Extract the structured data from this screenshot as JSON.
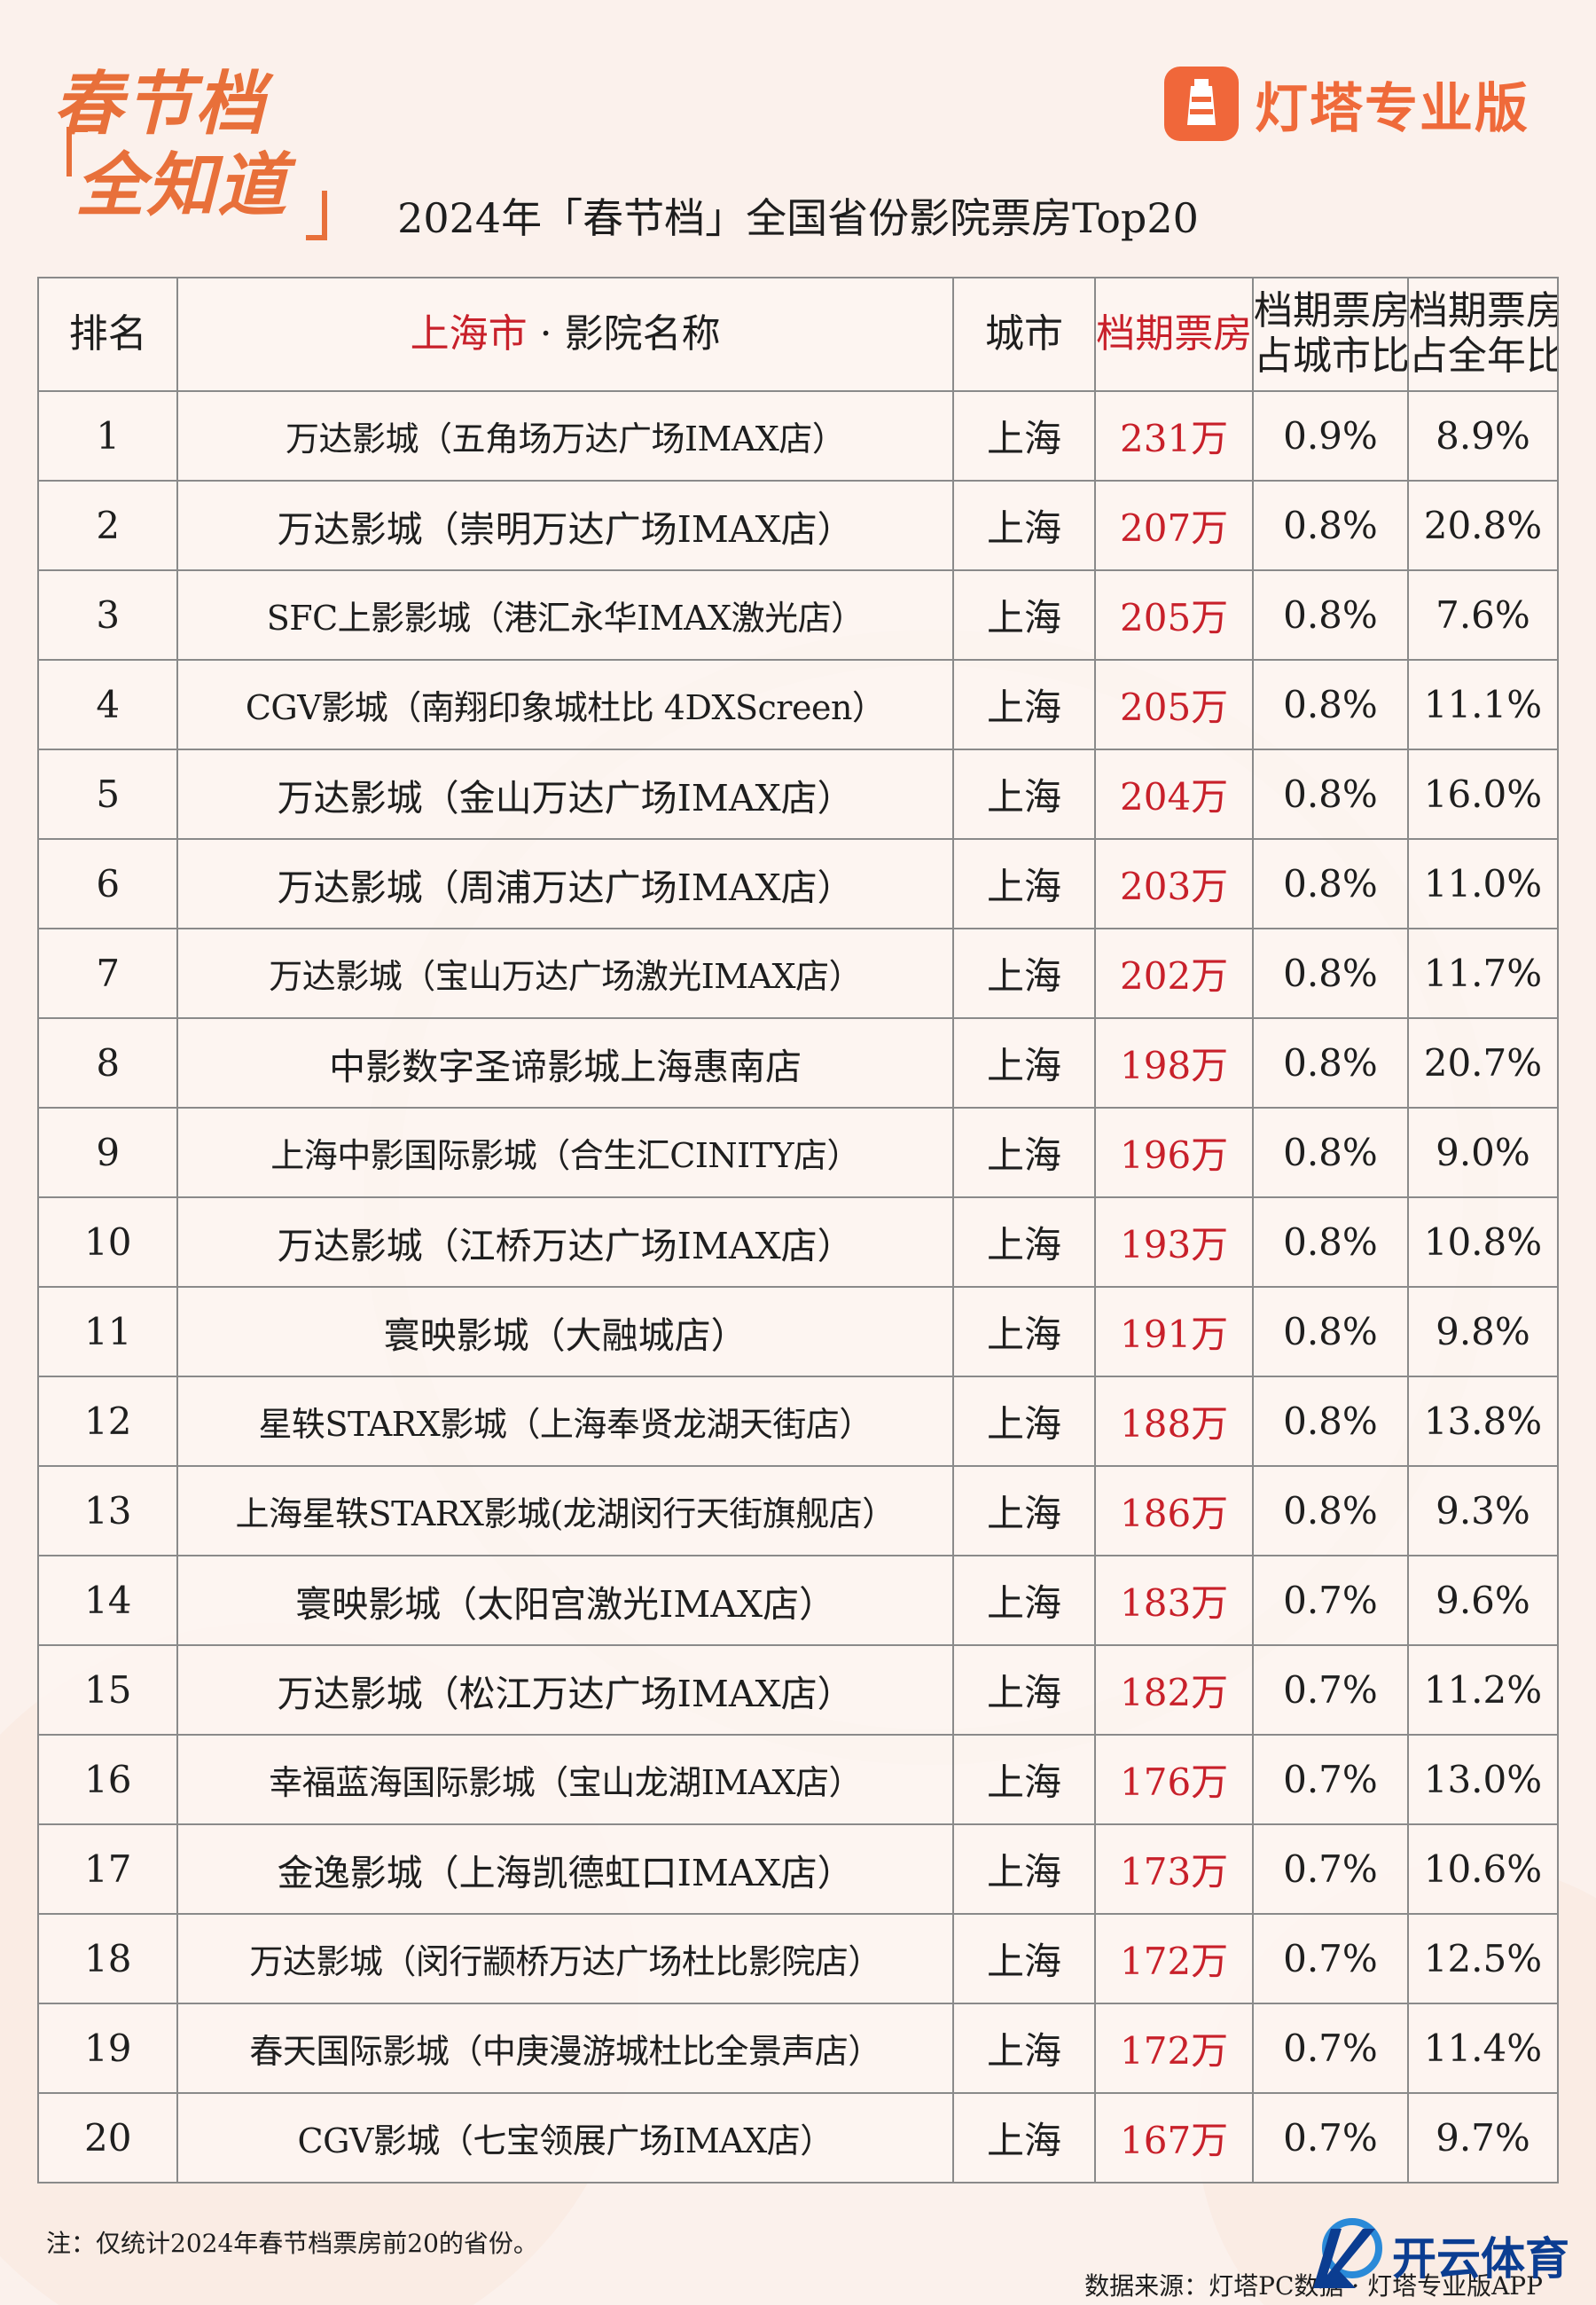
{
  "header": {
    "logo_line1": "春节档",
    "logo_line2": "全知道",
    "brand_icon": "lighthouse-icon",
    "brand_name": "灯塔专业版",
    "title": "2024年「春节档」全国省份影院票房Top20"
  },
  "colors": {
    "accent_orange": "#ef6a3a",
    "accent_red": "#c8202a",
    "background": "#fbf1ec"
  },
  "table": {
    "headers": {
      "rank": "排名",
      "cinema_city": "上海市",
      "cinema_sep": "· 影院名称",
      "city": "城市",
      "box_office": "档期票房",
      "city_ratio_l1": "档期票房",
      "city_ratio_l2": "占城市比",
      "year_ratio_l1": "档期票房",
      "year_ratio_l2": "占全年比"
    },
    "rows": [
      {
        "rank": "1",
        "cinema": "万达影城（五角场万达广场IMAX店）",
        "city": "上海",
        "box_office": "231万",
        "city_ratio": "0.9%",
        "year_ratio": "8.9%"
      },
      {
        "rank": "2",
        "cinema": "万达影城（崇明万达广场IMAX店）",
        "city": "上海",
        "box_office": "207万",
        "city_ratio": "0.8%",
        "year_ratio": "20.8%"
      },
      {
        "rank": "3",
        "cinema": "SFC上影影城（港汇永华IMAX激光店）",
        "city": "上海",
        "box_office": "205万",
        "city_ratio": "0.8%",
        "year_ratio": "7.6%"
      },
      {
        "rank": "4",
        "cinema": "CGV影城（南翔印象城杜比 4DXScreen）",
        "city": "上海",
        "box_office": "205万",
        "city_ratio": "0.8%",
        "year_ratio": "11.1%"
      },
      {
        "rank": "5",
        "cinema": "万达影城（金山万达广场IMAX店）",
        "city": "上海",
        "box_office": "204万",
        "city_ratio": "0.8%",
        "year_ratio": "16.0%"
      },
      {
        "rank": "6",
        "cinema": "万达影城（周浦万达广场IMAX店）",
        "city": "上海",
        "box_office": "203万",
        "city_ratio": "0.8%",
        "year_ratio": "11.0%"
      },
      {
        "rank": "7",
        "cinema": "万达影城（宝山万达广场激光IMAX店）",
        "city": "上海",
        "box_office": "202万",
        "city_ratio": "0.8%",
        "year_ratio": "11.7%"
      },
      {
        "rank": "8",
        "cinema": "中影数字圣谛影城上海惠南店",
        "city": "上海",
        "box_office": "198万",
        "city_ratio": "0.8%",
        "year_ratio": "20.7%"
      },
      {
        "rank": "9",
        "cinema": "上海中影国际影城（合生汇CINITY店）",
        "city": "上海",
        "box_office": "196万",
        "city_ratio": "0.8%",
        "year_ratio": "9.0%"
      },
      {
        "rank": "10",
        "cinema": "万达影城（江桥万达广场IMAX店）",
        "city": "上海",
        "box_office": "193万",
        "city_ratio": "0.8%",
        "year_ratio": "10.8%"
      },
      {
        "rank": "11",
        "cinema": "寰映影城（大融城店）",
        "city": "上海",
        "box_office": "191万",
        "city_ratio": "0.8%",
        "year_ratio": "9.8%"
      },
      {
        "rank": "12",
        "cinema": "星轶STARX影城（上海奉贤龙湖天街店）",
        "city": "上海",
        "box_office": "188万",
        "city_ratio": "0.8%",
        "year_ratio": "13.8%"
      },
      {
        "rank": "13",
        "cinema": "上海星轶STARX影城(龙湖闵行天街旗舰店）",
        "city": "上海",
        "box_office": "186万",
        "city_ratio": "0.8%",
        "year_ratio": "9.3%"
      },
      {
        "rank": "14",
        "cinema": "寰映影城（太阳宫激光IMAX店）",
        "city": "上海",
        "box_office": "183万",
        "city_ratio": "0.7%",
        "year_ratio": "9.6%"
      },
      {
        "rank": "15",
        "cinema": "万达影城（松江万达广场IMAX店）",
        "city": "上海",
        "box_office": "182万",
        "city_ratio": "0.7%",
        "year_ratio": "11.2%"
      },
      {
        "rank": "16",
        "cinema": "幸福蓝海国际影城（宝山龙湖IMAX店）",
        "city": "上海",
        "box_office": "176万",
        "city_ratio": "0.7%",
        "year_ratio": "13.0%"
      },
      {
        "rank": "17",
        "cinema": "金逸影城（上海凯德虹口IMAX店）",
        "city": "上海",
        "box_office": "173万",
        "city_ratio": "0.7%",
        "year_ratio": "10.6%"
      },
      {
        "rank": "18",
        "cinema": "万达影城（闵行颛桥万达广场杜比影院店）",
        "city": "上海",
        "box_office": "172万",
        "city_ratio": "0.7%",
        "year_ratio": "12.5%"
      },
      {
        "rank": "19",
        "cinema": "春天国际影城（中庚漫游城杜比全景声店）",
        "city": "上海",
        "box_office": "172万",
        "city_ratio": "0.7%",
        "year_ratio": "11.4%"
      },
      {
        "rank": "20",
        "cinema": "CGV影城（七宝领展广场IMAX店）",
        "city": "上海",
        "box_office": "167万",
        "city_ratio": "0.7%",
        "year_ratio": "9.7%"
      }
    ]
  },
  "footer": {
    "note": "注：仅统计2024年春节档票房前20的省份。",
    "source": "数据来源：灯塔PC数据 · 灯塔专业版APP",
    "watermark_icon": "k-logo-icon",
    "watermark_text": "开云体育"
  }
}
